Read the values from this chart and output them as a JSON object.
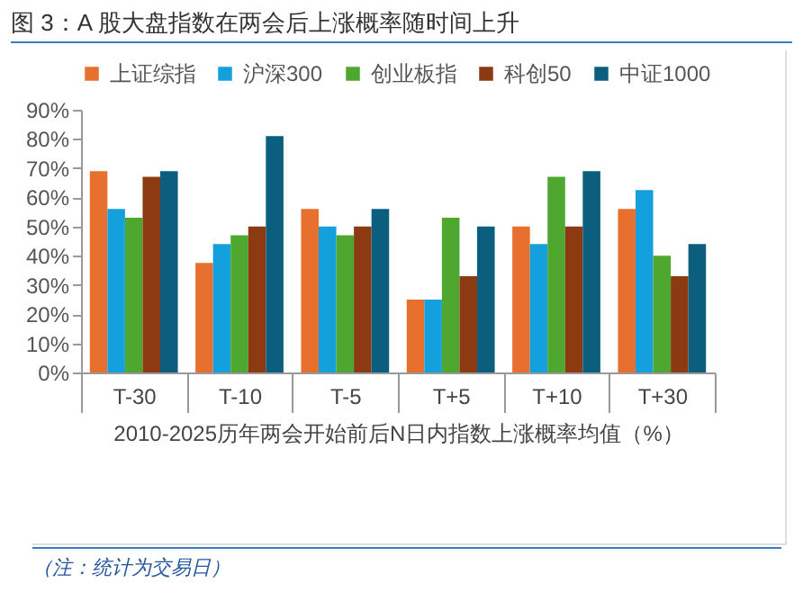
{
  "chart_data": {
    "type": "bar",
    "title": "图 3：A 股大盘指数在两会后上涨概率随时间上升",
    "xlabel": "2010-2025历年两会开始前后N日内指数上涨概率均值（%）",
    "annotations": [
      "（注：统计为交易日）"
    ],
    "categories": [
      "T-30",
      "T-10",
      "T-5",
      "T+5",
      "T+10",
      "T+30"
    ],
    "series": [
      {
        "name": "上证综指",
        "color": "#e8702f",
        "values": [
          69,
          37.5,
          56,
          25,
          50,
          56
        ]
      },
      {
        "name": "沪深300",
        "color": "#14a0dc",
        "values": [
          56,
          44,
          50,
          25,
          44,
          62.5
        ]
      },
      {
        "name": "创业板指",
        "color": "#4ea72e",
        "values": [
          53,
          47,
          47,
          53,
          67,
          40
        ]
      },
      {
        "name": "科创50",
        "color": "#8b3a12",
        "values": [
          67,
          50,
          50,
          33,
          50,
          33
        ]
      },
      {
        "name": "中证1000",
        "color": "#0b5e7e",
        "values": [
          69,
          81,
          56,
          50,
          69,
          44
        ]
      }
    ],
    "ylim": [
      0,
      90
    ],
    "yticks": [
      {
        "value": 0,
        "label": "0%"
      },
      {
        "value": 10,
        "label": "10%"
      },
      {
        "value": 20,
        "label": "20%"
      },
      {
        "value": 30,
        "label": "30%"
      },
      {
        "value": 40,
        "label": "40%"
      },
      {
        "value": 50,
        "label": "50%"
      },
      {
        "value": 60,
        "label": "60%"
      },
      {
        "value": 70,
        "label": "70%"
      },
      {
        "value": 80,
        "label": "80%"
      },
      {
        "value": 90,
        "label": "90%"
      }
    ],
    "grid": false,
    "legend": "top"
  }
}
